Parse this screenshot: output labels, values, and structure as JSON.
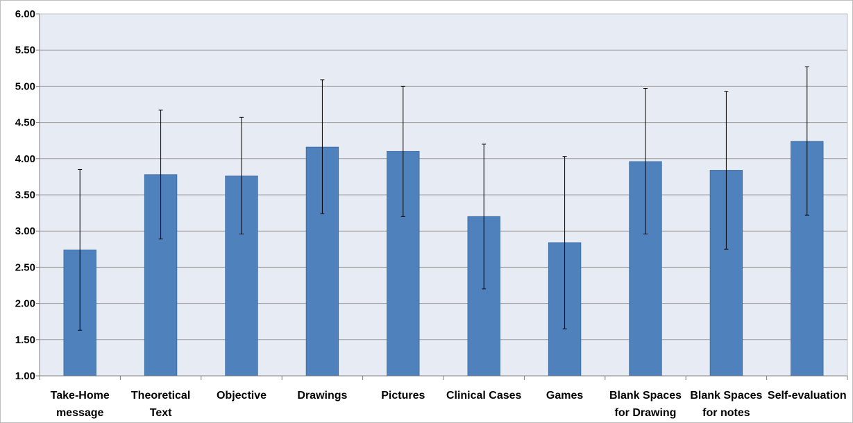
{
  "chart_data": {
    "type": "bar",
    "categories": [
      [
        "Take-Home",
        "message"
      ],
      [
        "Theoretical",
        "Text"
      ],
      [
        "Objective"
      ],
      [
        "Drawings"
      ],
      [
        "Pictures"
      ],
      [
        "Clinical Cases"
      ],
      [
        "Games"
      ],
      [
        "Blank Spaces",
        "for Drawing"
      ],
      [
        "Blank Spaces",
        "for notes"
      ],
      [
        "Self-evaluation"
      ]
    ],
    "series": [
      {
        "values": [
          2.74,
          3.78,
          3.76,
          4.16,
          4.1,
          3.2,
          2.84,
          3.96,
          3.84,
          4.24
        ],
        "error_low": [
          1.63,
          2.89,
          2.96,
          3.24,
          3.2,
          2.2,
          1.65,
          2.96,
          2.75,
          3.22
        ],
        "error_high": [
          3.85,
          4.67,
          4.57,
          5.09,
          5.0,
          4.2,
          4.03,
          4.97,
          4.93,
          5.27
        ]
      }
    ],
    "yticks": [
      "1.00",
      "1.50",
      "2.00",
      "2.50",
      "3.00",
      "3.50",
      "4.00",
      "4.50",
      "5.00",
      "5.50",
      "6.00"
    ],
    "ylim": [
      1.0,
      6.0
    ],
    "grid": true,
    "legend": "none",
    "colors": {
      "bar": "#4f81bd",
      "bar_edge": "#3c6a9e",
      "plot_bg": "#e7ecf4",
      "grid": "#9a9a9a",
      "error_bar": "#000000"
    }
  }
}
